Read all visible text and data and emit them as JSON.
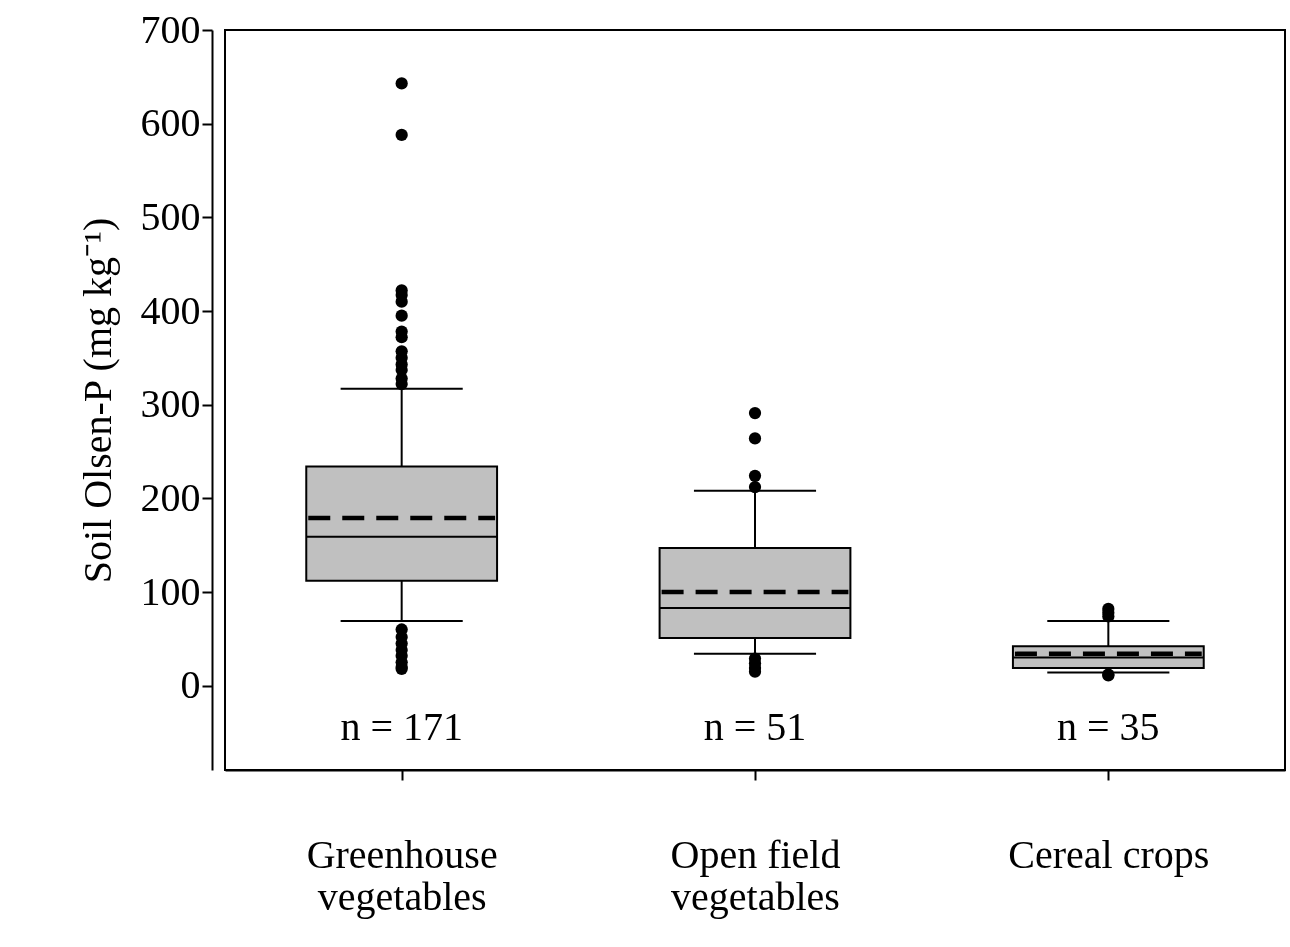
{
  "chart_data": {
    "type": "box",
    "ylabel": "Soil Olsen-P (mg kg⁻¹)",
    "categories": [
      "Greenhouse vegetables",
      "Open field vegetables",
      "Cereal crops"
    ],
    "color": "#c0c0c0",
    "boxes": [
      {
        "low": 69,
        "q1": 112,
        "median": 159,
        "q3": 234,
        "high": 317,
        "mean": 179,
        "outliers": [
          643,
          588,
          422,
          417,
          410,
          395,
          378,
          372,
          357,
          350,
          343,
          337,
          328,
          322,
          60,
          52,
          45,
          38,
          32,
          25,
          20,
          18
        ]
      },
      {
        "low": 34,
        "q1": 51,
        "median": 83,
        "q3": 147,
        "high": 208,
        "mean": 100,
        "outliers": [
          291,
          264,
          224,
          212,
          29,
          24,
          19,
          15
        ]
      },
      {
        "low": 14,
        "q1": 19,
        "median": 30,
        "q3": 42,
        "high": 69,
        "mean": 34,
        "outliers": [
          82,
          78,
          74,
          12,
          11
        ]
      }
    ],
    "ylim": [
      -90,
      700
    ],
    "yticks": [
      0,
      100,
      200,
      300,
      400,
      500,
      600,
      700
    ],
    "grid": false,
    "annotations": [
      "n = 171",
      "n = 51",
      "n = 35"
    ]
  }
}
